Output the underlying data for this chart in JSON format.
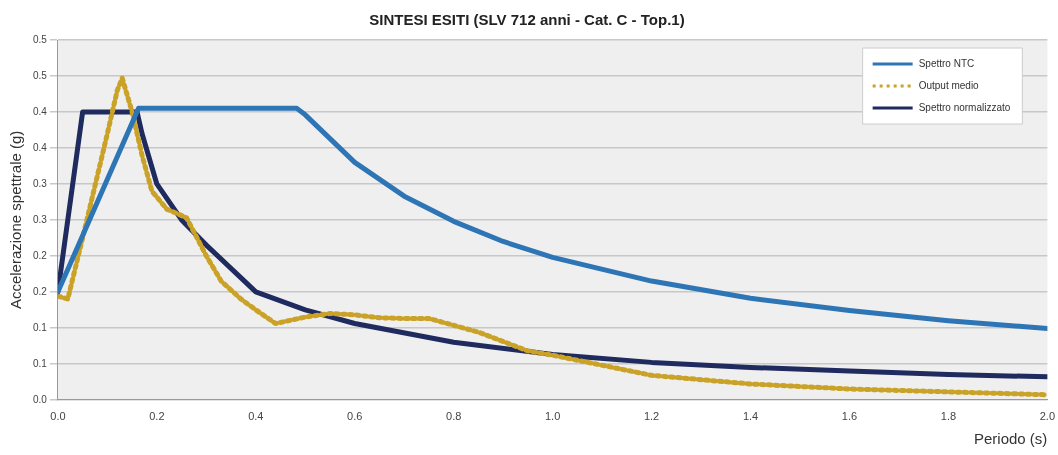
{
  "chart_data": {
    "type": "line",
    "title": "SINTESI ESITI (SLV 712 anni - Cat. C - Top.1)",
    "xlabel": "Periodo (s)",
    "ylabel": "Accelerazione spettrale (g)",
    "xlim": [
      0,
      2
    ],
    "xticks": [
      {
        "value": 0,
        "label": "0.0"
      },
      {
        "value": 0.2,
        "label": "0.2"
      },
      {
        "value": 0.4,
        "label": "0.4"
      },
      {
        "value": 0.6,
        "label": "0.6"
      },
      {
        "value": 0.8,
        "label": "0.8"
      },
      {
        "value": 1,
        "label": "1.0"
      },
      {
        "value": 1.2,
        "label": "1.2"
      },
      {
        "value": 1.4,
        "label": "1.4"
      },
      {
        "value": 1.6,
        "label": "1.6"
      },
      {
        "value": 1.8,
        "label": "1.8"
      },
      {
        "value": 2,
        "label": "2.0"
      }
    ],
    "ylim": [
      0,
      0.5
    ],
    "yticks": [
      {
        "value": 0,
        "label": "0.0"
      },
      {
        "value": 0.05,
        "label": "0.1"
      },
      {
        "value": 0.1,
        "label": "0.1"
      },
      {
        "value": 0.15,
        "label": "0.2"
      },
      {
        "value": 0.2,
        "label": "0.2"
      },
      {
        "value": 0.25,
        "label": "0.3"
      },
      {
        "value": 0.3,
        "label": "0.3"
      },
      {
        "value": 0.35,
        "label": "0.4"
      },
      {
        "value": 0.4,
        "label": "0.4"
      },
      {
        "value": 0.45,
        "label": "0.5"
      },
      {
        "value": 0.5,
        "label": "0.5"
      }
    ],
    "grid": "y",
    "legend": "top right",
    "marker": "none",
    "series": [
      {
        "name": "Spettro NTC",
        "color": "#2e75b6",
        "line_style": "solid",
        "x": [
          0,
          0.163,
          0.483,
          0.5,
          0.6,
          0.7,
          0.8,
          0.9,
          1.0,
          1.2,
          1.4,
          1.6,
          1.8,
          2.0
        ],
        "values": [
          0.15,
          0.405,
          0.405,
          0.396,
          0.33,
          0.283,
          0.248,
          0.22,
          0.198,
          0.165,
          0.141,
          0.124,
          0.11,
          0.099
        ]
      },
      {
        "name": "Output medio",
        "color": "#c9a227",
        "line_style": "dotted",
        "x": [
          0,
          0.02,
          0.05,
          0.1,
          0.12,
          0.13,
          0.15,
          0.17,
          0.19,
          0.22,
          0.26,
          0.3,
          0.33,
          0.37,
          0.4,
          0.44,
          0.5,
          0.55,
          0.6,
          0.65,
          0.7,
          0.75,
          0.85,
          0.95,
          1.0,
          1.1,
          1.2,
          1.4,
          1.6,
          1.8,
          2.0
        ],
        "values": [
          0.144,
          0.14,
          0.225,
          0.37,
          0.43,
          0.447,
          0.4,
          0.34,
          0.29,
          0.265,
          0.253,
          0.2,
          0.165,
          0.14,
          0.125,
          0.106,
          0.115,
          0.12,
          0.118,
          0.114,
          0.113,
          0.113,
          0.094,
          0.068,
          0.062,
          0.048,
          0.034,
          0.022,
          0.015,
          0.011,
          0.007
        ]
      },
      {
        "name": "Spettro normalizzato",
        "color": "#1f2a5e",
        "line_style": "solid",
        "x": [
          0,
          0.05,
          0.16,
          0.17,
          0.2,
          0.25,
          0.3,
          0.4,
          0.5,
          0.6,
          0.8,
          1.0,
          1.2,
          1.4,
          1.6,
          1.8,
          2.0
        ],
        "values": [
          0.15,
          0.4,
          0.4,
          0.37,
          0.3,
          0.25,
          0.215,
          0.15,
          0.125,
          0.106,
          0.08,
          0.063,
          0.052,
          0.045,
          0.04,
          0.035,
          0.032
        ]
      }
    ]
  }
}
